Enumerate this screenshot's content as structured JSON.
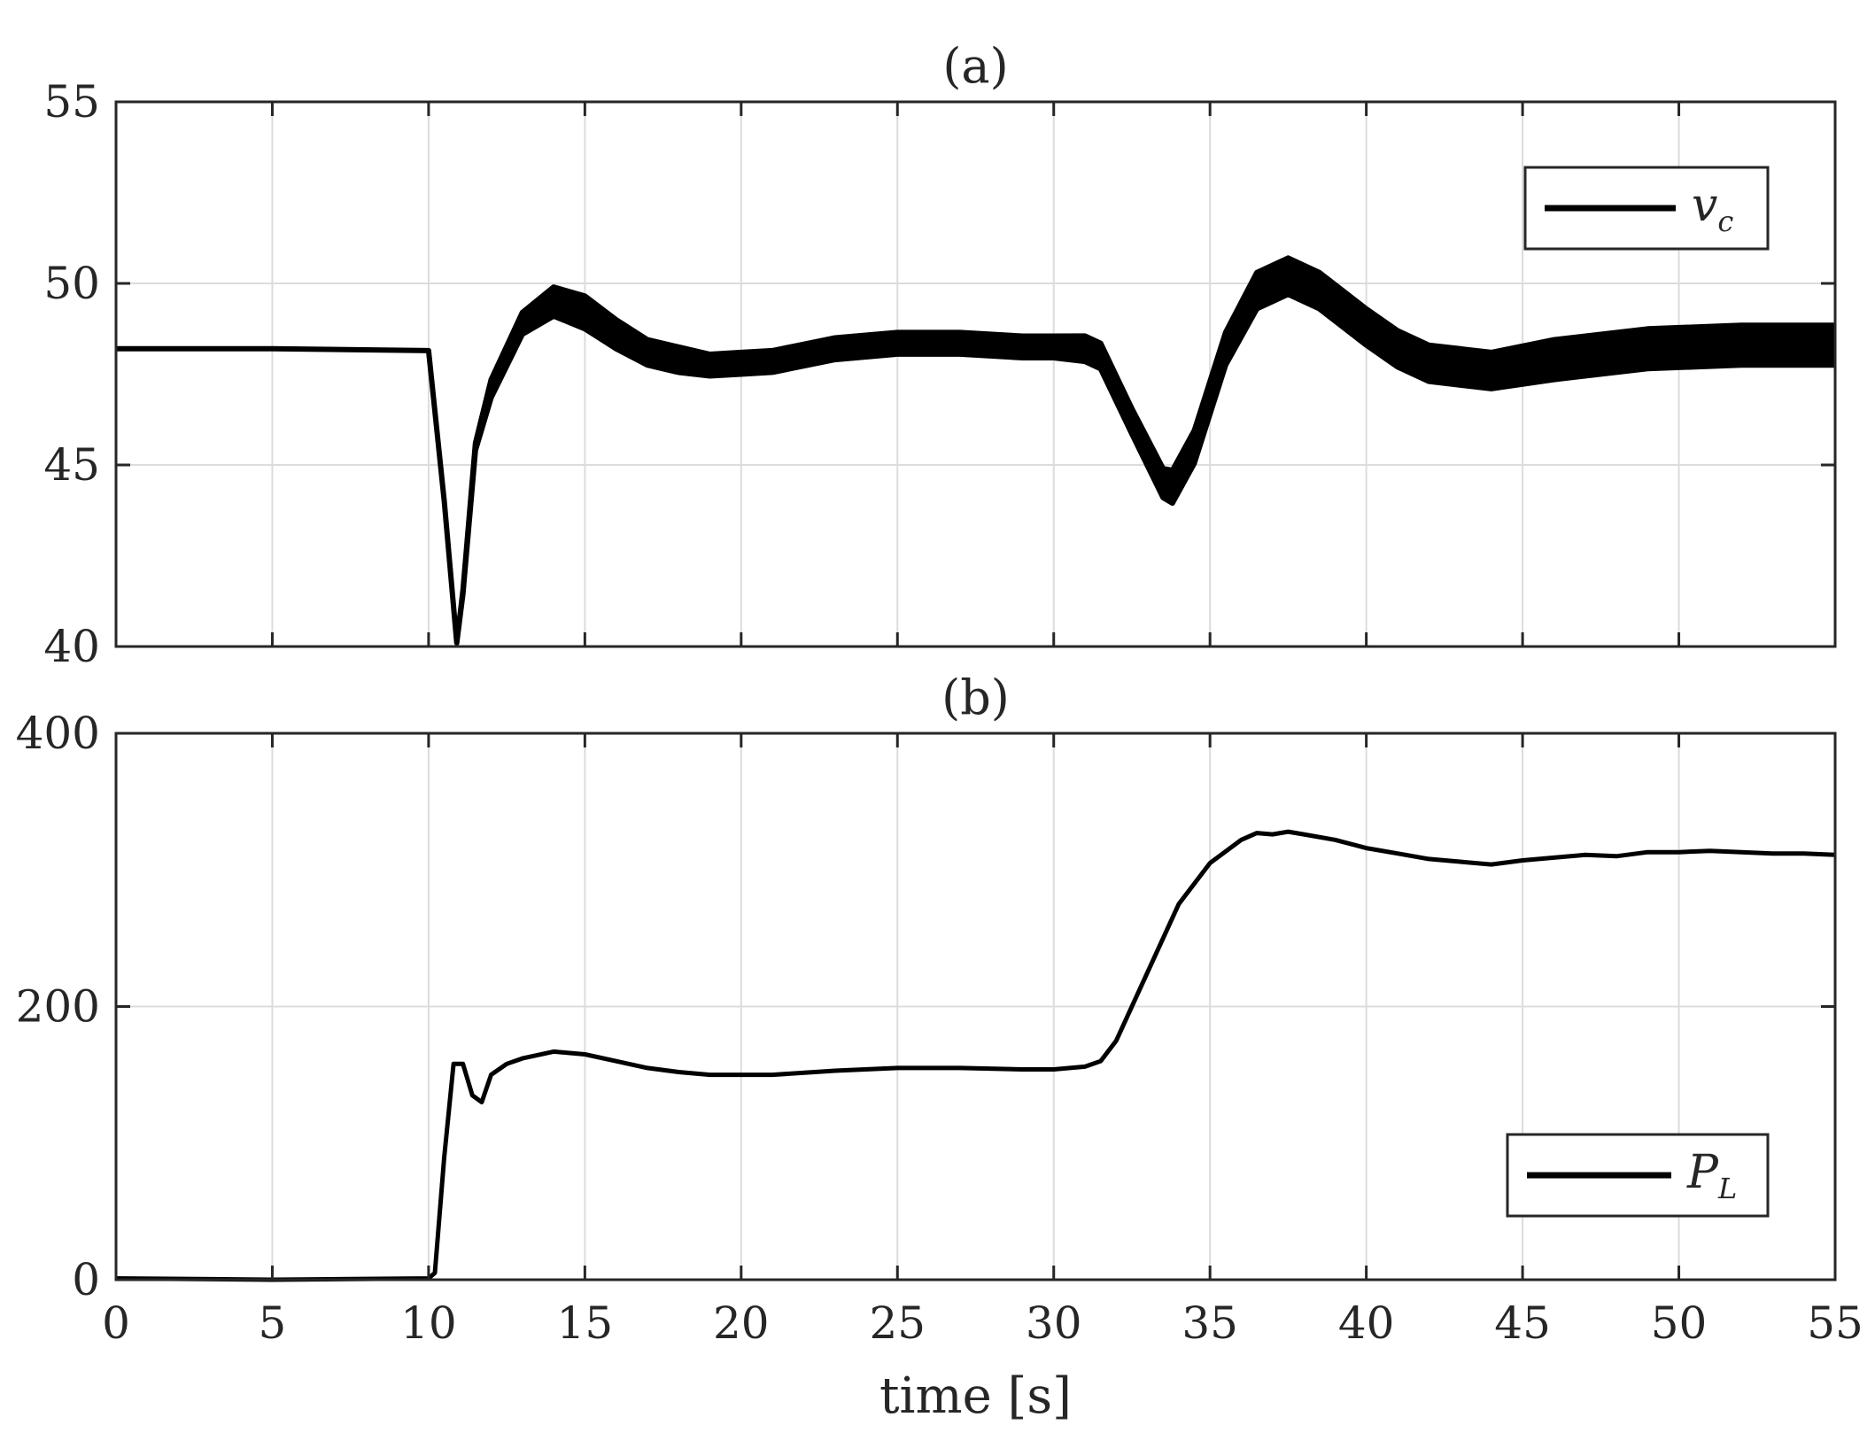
{
  "figure": {
    "x_label": "time [s]",
    "x_ticks": [
      "0",
      "5",
      "10",
      "15",
      "20",
      "25",
      "30",
      "35",
      "40",
      "45",
      "50",
      "55"
    ]
  },
  "colors": {
    "line": "#000000",
    "grid": "#dcdcdc",
    "axes": "#262626"
  },
  "chart_data": [
    {
      "type": "line",
      "title": "(a)",
      "xlabel": "",
      "ylabel": "",
      "xlim": [
        0,
        55
      ],
      "ylim": [
        40,
        55
      ],
      "y_ticks": [
        "40",
        "45",
        "50",
        "55"
      ],
      "grid": true,
      "legend": {
        "placement": "top-right",
        "label_main": "v",
        "label_sub": "c"
      },
      "series": [
        {
          "label_main": "v",
          "label_sub": "c",
          "band_width": [
            0,
            0,
            0,
            0,
            0,
            0.1,
            0.2,
            0.5,
            0.6,
            0.8,
            0.9,
            0.8,
            0.7,
            0.7,
            0.6,
            0.6,
            0.6,
            0.6,
            0.6,
            0.6,
            0.6,
            0.6,
            0.7,
            0.7,
            0.7,
            0.8,
            0.9,
            0.9,
            0.9,
            1.0,
            1.0,
            1.0,
            1.0,
            1.0,
            1.0,
            1.0,
            1.1,
            1.1,
            1.1,
            1.1
          ],
          "x": [
            0,
            5,
            10,
            10.5,
            10.9,
            11.1,
            11.5,
            12,
            13,
            14,
            15,
            16,
            17,
            18,
            19,
            20,
            21,
            23,
            25,
            27,
            29,
            30,
            31,
            31.5,
            32.5,
            33.5,
            33.8,
            34.5,
            35.5,
            36.5,
            37.5,
            38.5,
            40,
            41,
            42,
            44,
            46,
            49,
            52,
            55
          ],
          "y": [
            48.2,
            48.2,
            48.15,
            44,
            40.1,
            41.5,
            45.5,
            47.1,
            48.9,
            49.5,
            49.2,
            48.6,
            48.1,
            47.9,
            47.75,
            47.8,
            47.85,
            48.2,
            48.35,
            48.35,
            48.25,
            48.25,
            48.2,
            48.0,
            46.2,
            44.5,
            44.4,
            45.5,
            48.2,
            49.8,
            50.2,
            49.8,
            48.8,
            48.2,
            47.8,
            47.6,
            47.9,
            48.2,
            48.3,
            48.3
          ]
        }
      ]
    },
    {
      "type": "line",
      "title": "(b)",
      "xlabel": "time [s]",
      "ylabel": "",
      "xlim": [
        0,
        55
      ],
      "ylim": [
        0,
        400
      ],
      "y_ticks": [
        "0",
        "200",
        "400"
      ],
      "grid": true,
      "legend": {
        "placement": "bottom-right",
        "label_main": "P",
        "label_sub": "L"
      },
      "series": [
        {
          "label_main": "P",
          "label_sub": "L",
          "x": [
            0,
            5,
            10,
            10.2,
            10.5,
            10.8,
            11.1,
            11.4,
            11.7,
            12,
            12.5,
            13,
            14,
            15,
            16,
            17,
            18,
            19,
            20,
            21,
            23,
            25,
            27,
            29,
            30,
            31,
            31.5,
            32,
            33,
            34,
            35,
            36,
            36.5,
            37,
            37.5,
            38,
            39,
            40,
            41,
            42,
            43,
            44,
            45,
            46,
            47,
            48,
            49,
            50,
            51,
            52,
            53,
            54,
            55
          ],
          "y": [
            1,
            0,
            1,
            5,
            90,
            158,
            158,
            135,
            130,
            150,
            158,
            162,
            167,
            165,
            160,
            155,
            152,
            150,
            150,
            150,
            153,
            155,
            155,
            154,
            154,
            156,
            160,
            175,
            225,
            275,
            305,
            322,
            327,
            326,
            328,
            326,
            322,
            316,
            312,
            308,
            306,
            304,
            307,
            309,
            311,
            310,
            313,
            313,
            314,
            313,
            312,
            312,
            311
          ]
        }
      ]
    }
  ]
}
